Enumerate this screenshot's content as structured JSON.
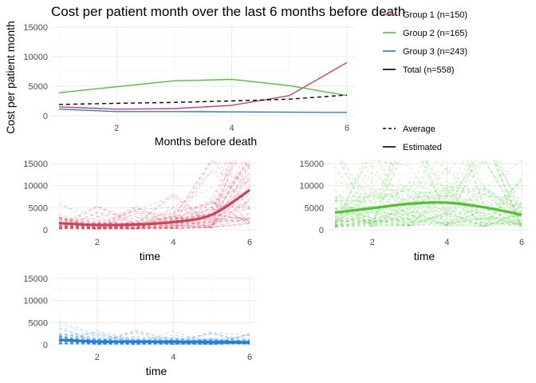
{
  "chart_data": [
    {
      "type": "line",
      "title": "Cost per patient month over the last 6 months before death",
      "xlabel": "Months before death",
      "ylabel": "Cost per patient month",
      "xlim": [
        1,
        6
      ],
      "ylim": [
        0,
        15000
      ],
      "x_ticks": [
        "2",
        "4",
        "6"
      ],
      "y_ticks": [
        "0",
        "5000",
        "10000",
        "15000"
      ],
      "grid": true,
      "x": [
        1,
        2,
        3,
        4,
        5,
        6
      ],
      "series": [
        {
          "name": "Group 1 (n=150)",
          "color": "#d2415a",
          "values": [
            1500,
            1100,
            1200,
            1750,
            3400,
            9000
          ]
        },
        {
          "name": "Group 2 (n=165)",
          "color": "#4cc431",
          "values": [
            3900,
            4900,
            5900,
            6150,
            5100,
            3400
          ]
        },
        {
          "name": "Group 3 (n=243)",
          "color": "#1f7fd9",
          "values": [
            1100,
            700,
            700,
            650,
            600,
            550
          ]
        },
        {
          "name": "Total (n=558)",
          "color": "#000000",
          "dashed": true,
          "values": [
            1900,
            2100,
            2250,
            2500,
            2800,
            3500
          ]
        }
      ],
      "legend_position": "right",
      "linetype_legend": [
        {
          "label": "Average",
          "style": "dashed"
        },
        {
          "label": "Estimated",
          "style": "solid"
        }
      ]
    },
    {
      "type": "line",
      "title": "",
      "xlabel": "time",
      "ylabel": "",
      "xlim": [
        1,
        6
      ],
      "ylim": [
        0,
        15000
      ],
      "x_ticks": [
        "2",
        "4",
        "6"
      ],
      "y_ticks": [
        "0",
        "5000",
        "10000",
        "15000"
      ],
      "color": "#d2415a",
      "x": [
        1,
        2,
        3,
        4,
        5,
        6
      ],
      "series": [
        {
          "name": "",
          "values": [
            1500,
            1100,
            1200,
            1750,
            3400,
            9000
          ]
        }
      ]
    },
    {
      "type": "line",
      "title": "",
      "xlabel": "time",
      "ylabel": "",
      "xlim": [
        1,
        6
      ],
      "ylim": [
        0,
        15000
      ],
      "x_ticks": [
        "2",
        "4",
        "6"
      ],
      "y_ticks": [
        "0",
        "5000",
        "10000",
        "15000"
      ],
      "color": "#4cc431",
      "x": [
        1,
        2,
        3,
        4,
        5,
        6
      ],
      "series": [
        {
          "name": "",
          "values": [
            3900,
            4900,
            5900,
            6150,
            5100,
            3400
          ]
        }
      ]
    },
    {
      "type": "line",
      "title": "",
      "xlabel": "time",
      "ylabel": "",
      "xlim": [
        1,
        6
      ],
      "ylim": [
        0,
        15000
      ],
      "x_ticks": [
        "2",
        "4",
        "6"
      ],
      "y_ticks": [
        "0",
        "5000",
        "10000",
        "15000"
      ],
      "color": "#1f7fd9",
      "x": [
        1,
        2,
        3,
        4,
        5,
        6
      ],
      "series": [
        {
          "name": "",
          "values": [
            1100,
            700,
            700,
            650,
            600,
            550
          ]
        }
      ]
    }
  ]
}
